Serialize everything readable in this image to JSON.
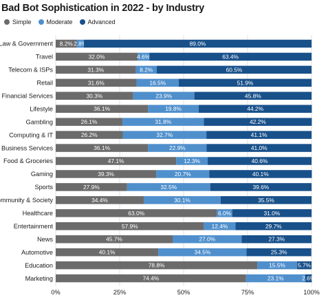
{
  "title": "Bad Bot Sophistication in 2022 - by Industry",
  "colors": {
    "simple": "#6b6b6b",
    "moderate": "#4f8fcc",
    "advanced": "#18508a",
    "grid": "#d9d9d9"
  },
  "chart_data": {
    "type": "bar",
    "orientation": "horizontal",
    "stacked": true,
    "title": "Bad Bot Sophistication in 2022 - by Industry",
    "categories": [
      "Law & Government",
      "Travel",
      "Telecom & ISPs",
      "Retail",
      "Financial Services",
      "Lifestyle",
      "Gambling",
      "Computing & IT",
      "Business Services",
      "Food & Groceries",
      "Gaming",
      "Sports",
      "Community & Society",
      "Healthcare",
      "Entertainment",
      "News",
      "Automotive",
      "Education",
      "Marketing"
    ],
    "series": [
      {
        "name": "Simple",
        "values": [
          8.2,
          32.0,
          31.3,
          31.6,
          30.3,
          36.1,
          26.1,
          26.2,
          36.1,
          47.1,
          39.3,
          27.9,
          34.4,
          63.0,
          57.9,
          45.7,
          40.1,
          78.8,
          74.4
        ]
      },
      {
        "name": "Moderate",
        "values": [
          2.8,
          4.6,
          8.2,
          16.5,
          23.9,
          19.8,
          31.8,
          32.7,
          22.9,
          12.3,
          20.7,
          32.5,
          30.1,
          6.0,
          12.4,
          27.0,
          34.5,
          15.5,
          23.1
        ]
      },
      {
        "name": "Advanced",
        "values": [
          89.0,
          63.4,
          60.5,
          51.9,
          45.8,
          44.2,
          42.2,
          41.1,
          41.0,
          40.6,
          40.1,
          39.6,
          35.5,
          31.0,
          29.7,
          27.3,
          25.3,
          5.7,
          2.6
        ]
      }
    ],
    "xlim": [
      0,
      100
    ],
    "xticks": [
      "0%",
      "25%",
      "50%",
      "75%",
      "100%"
    ],
    "legend_position": "top-left",
    "grid": "vertical"
  }
}
